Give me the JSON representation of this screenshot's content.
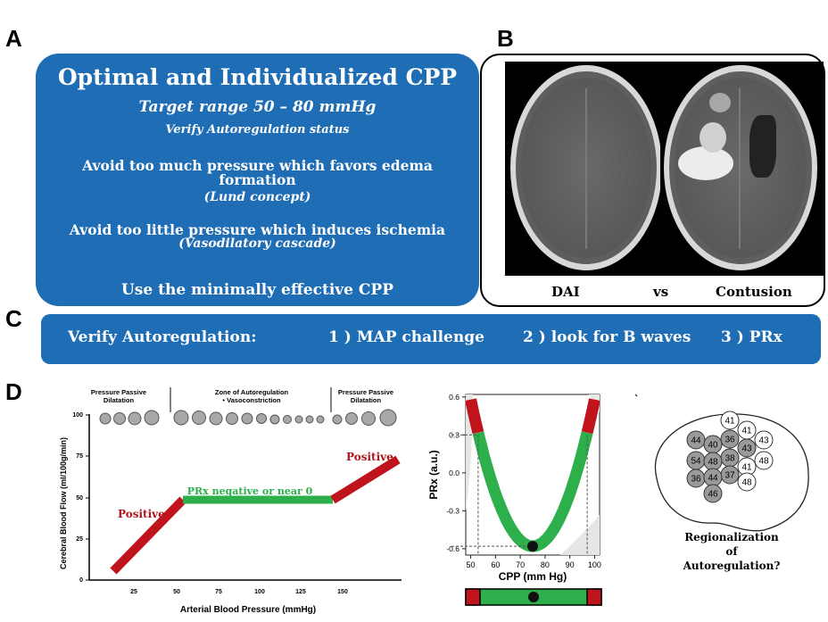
{
  "labels": {
    "a": "A",
    "b": "B",
    "c": "C",
    "d": "D"
  },
  "panel_a": {
    "title": "Optimal and Individualized CPP",
    "target": "Target range 50 – 80 mmHg",
    "verify": "Verify Autoregulation status",
    "avoid_much": "Avoid too much pressure which favors edema formation",
    "lund": "(Lund concept)",
    "avoid_little": "Avoid too little pressure which induces ischemia",
    "vaso": "(Vasodilatory cascade)",
    "use": "Use the minimally effective CPP"
  },
  "panel_b": {
    "left": "DAI",
    "mid": "vs",
    "right": "Contusion"
  },
  "panel_c": {
    "verify": "Verify Autoregulation:",
    "item1": "1 ) MAP challenge",
    "item2": "2 ) look for B waves",
    "item3": "3 ) PRx"
  },
  "panel_d1": {
    "zone_left": [
      "Pressure Passive",
      "Dilatation"
    ],
    "zone_mid": [
      "Zone of Autoregulation",
      "• Vasoconstriction"
    ],
    "zone_right": [
      "Pressure Passive",
      "Dilatation"
    ],
    "ylabel": "Cerebral Blood Flow (ml/100g/min)",
    "xlabel": "Arterial Blood Pressure (mmHg)",
    "yticks": [
      "100",
      "75",
      "50",
      "25",
      "0"
    ],
    "xticks": [
      "25",
      "50",
      "75",
      "100",
      "125",
      "150"
    ],
    "positive_left": "Positive",
    "positive_right": "Positive",
    "plateau": "PRx negative or near 0"
  },
  "chart_data": {
    "type": "line",
    "xlabel": "CPP (mm Hg)",
    "ylabel": "PRx (a.u.)",
    "xticks": [
      "50",
      "60",
      "70",
      "80",
      "90",
      "100"
    ],
    "yticks": [
      "0.6",
      "0.3",
      "0.0",
      "-0.3",
      "-0.6"
    ],
    "xlim": [
      48,
      102
    ],
    "ylim": [
      -0.65,
      0.62
    ],
    "optimum": {
      "x": 75,
      "y": -0.58
    },
    "thresholds": {
      "x_low": 53,
      "x_high": 97,
      "y": 0.3
    },
    "colors": {
      "red": "#c0141c",
      "green": "#2db04b"
    }
  },
  "panel_d3": {
    "caption": [
      "Regionalization",
      "of",
      "Autoregulation?"
    ],
    "regions": [
      "41",
      "41",
      "43",
      "36",
      "44",
      "43",
      "40",
      "48",
      "38",
      "54",
      "41",
      "48",
      "37",
      "48",
      "36",
      "44",
      "46"
    ]
  }
}
